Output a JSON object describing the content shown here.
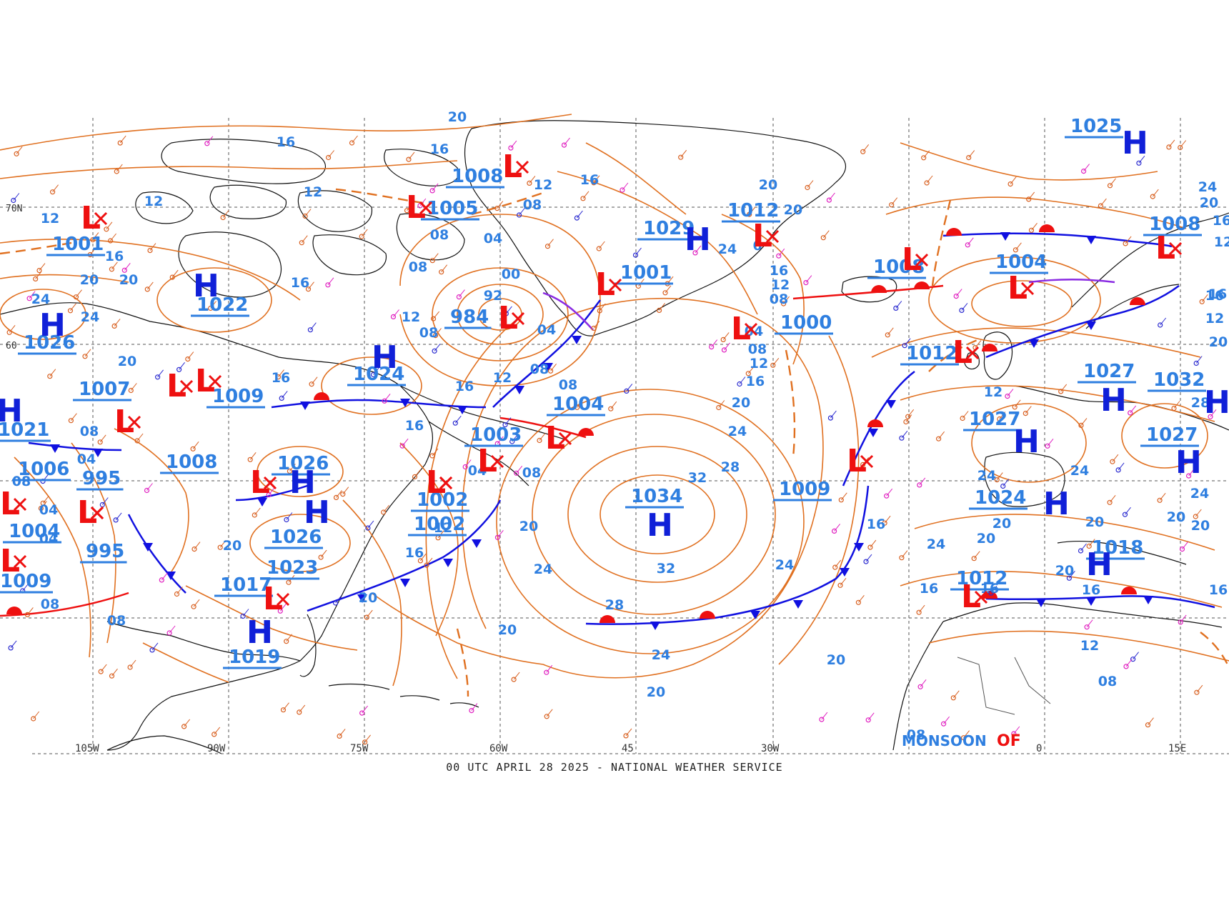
{
  "map": {
    "title": "00 UTC APRIL 28 2025 - NATIONAL WEATHER SERVICE",
    "colors": {
      "isobar": "#e07020",
      "isobar_label": "#2f7fe0",
      "high": "#1020d8",
      "low": "#ee1010",
      "cold_front": "#1010e0",
      "warm_front": "#ee1010",
      "occluded_front": "#8a2be2",
      "coast": "#111111",
      "grid": "#555555",
      "station_orange": "#d86020",
      "station_magenta": "#e020c0"
    },
    "lon_labels": [
      "105W",
      "90W",
      "75W",
      "60W",
      "45",
      "30W",
      "0",
      "15E"
    ],
    "lat_labels": [
      "70N",
      "60"
    ],
    "highs": [
      {
        "pressure": "1025"
      },
      {
        "pressure": "1029"
      },
      {
        "pressure": "1022"
      },
      {
        "pressure": "1026"
      },
      {
        "pressure": "1024"
      },
      {
        "pressure": "1026"
      },
      {
        "pressure": "1026"
      },
      {
        "pressure": "1023"
      },
      {
        "pressure": "1019"
      },
      {
        "pressure": "1034"
      },
      {
        "pressure": "1027"
      },
      {
        "pressure": "1032"
      },
      {
        "pressure": "1027"
      },
      {
        "pressure": "1027"
      },
      {
        "pressure": "1024"
      },
      {
        "pressure": "1021"
      },
      {
        "pressure": "1018"
      }
    ],
    "lows": [
      {
        "pressure": "1008"
      },
      {
        "pressure": "1005"
      },
      {
        "pressure": "1001"
      },
      {
        "pressure": "1001"
      },
      {
        "pressure": "1012"
      },
      {
        "pressure": "984"
      },
      {
        "pressure": "1000"
      },
      {
        "pressure": "1008"
      },
      {
        "pressure": "1004"
      },
      {
        "pressure": "1008"
      },
      {
        "pressure": "1012"
      },
      {
        "pressure": "1007"
      },
      {
        "pressure": "1009"
      },
      {
        "pressure": "1004"
      },
      {
        "pressure": "1003"
      },
      {
        "pressure": "1008"
      },
      {
        "pressure": "1002"
      },
      {
        "pressure": "1002"
      },
      {
        "pressure": "1009"
      },
      {
        "pressure": "1012"
      },
      {
        "pressure": "1006"
      },
      {
        "pressure": "995"
      },
      {
        "pressure": "995"
      },
      {
        "pressure": "1004"
      },
      {
        "pressure": "1017"
      },
      {
        "pressure": "1009"
      }
    ],
    "isobar_values": [
      "00",
      "04",
      "08",
      "12",
      "16",
      "20",
      "24",
      "28",
      "32"
    ],
    "misc_labels": {
      "monsoon": "MONSOON",
      "low_fragment": "OF"
    }
  }
}
